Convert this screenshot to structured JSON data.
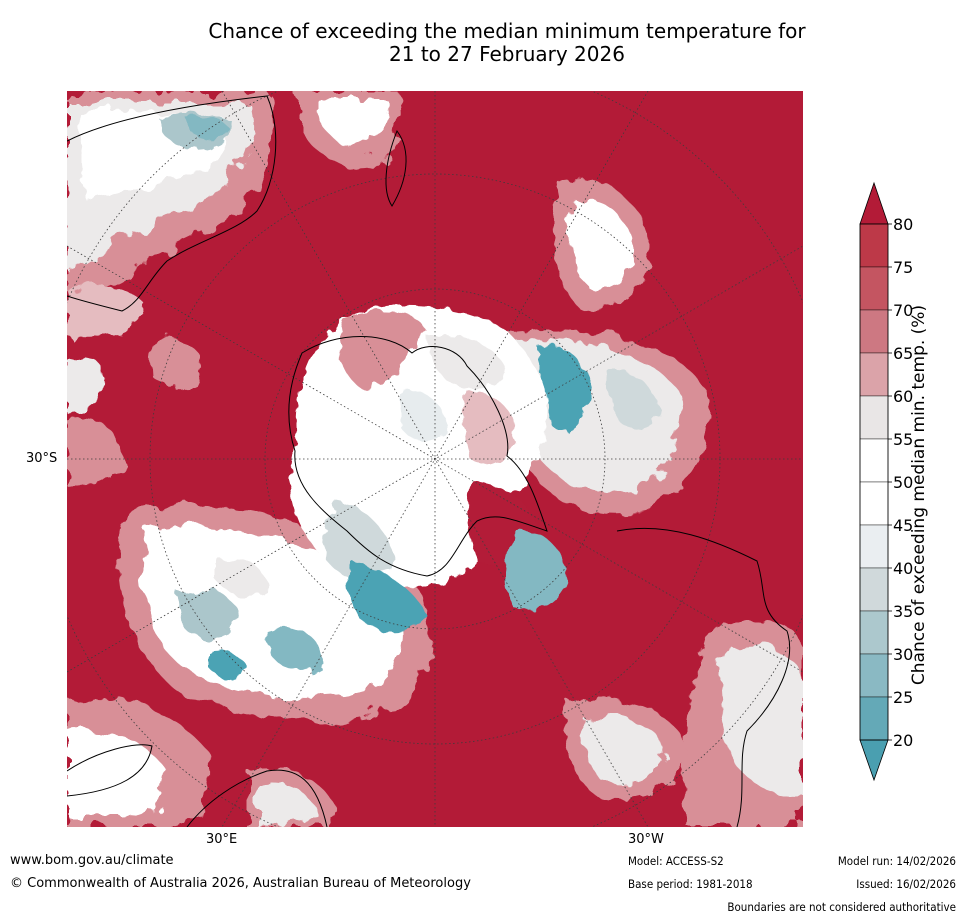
{
  "title": {
    "line1": "Chance of exceeding the median minimum temperature for",
    "line2": "21 to 27 February 2026"
  },
  "map": {
    "projection": "south-polar-stereographic",
    "latitude_labels": [
      "30°S"
    ],
    "longitude_labels": [
      "30°E",
      "30°W"
    ],
    "colors": {
      "dominant": "#b31b37",
      "c75": "#c8505e",
      "c65": "#d88f97",
      "c60": "#e5bcc0",
      "neutral_light": "#eceaea",
      "white": "#ffffff",
      "c40": "#e7ecee",
      "c35": "#cfd9db",
      "c30": "#abc6cb",
      "c25": "#83b8c2",
      "c20": "#4ca3b4",
      "coast": "#000000",
      "grid": "#3d3d3d"
    }
  },
  "colorbar": {
    "label": "Chance of exceeding median min. temp. (%)",
    "ticks": [
      "80",
      "75",
      "70",
      "65",
      "60",
      "55",
      "50",
      "45",
      "40",
      "35",
      "30",
      "25",
      "20"
    ],
    "segment_colors": [
      "#bd3948",
      "#c45561",
      "#cd7882",
      "#dba3a9",
      "#e9e6e6",
      "#ffffff",
      "#ffffff",
      "#eaeef1",
      "#d0d9db",
      "#acc8cd",
      "#8ab9c3",
      "#64a9b7"
    ],
    "top_arrow_color": "#b31b37",
    "bottom_arrow_color": "#4a9fb0"
  },
  "footer": {
    "url": "www.bom.gov.au/climate",
    "copyright": "© Commonwealth of Australia 2026, Australian Bureau of Meteorology",
    "model": "Model: ACCESS-S2",
    "base_period": "Base period: 1981-2018",
    "model_run": "Model run: 14/02/2026",
    "issued": "Issued: 16/02/2026",
    "disclaimer": "Boundaries are not considered authoritative"
  }
}
